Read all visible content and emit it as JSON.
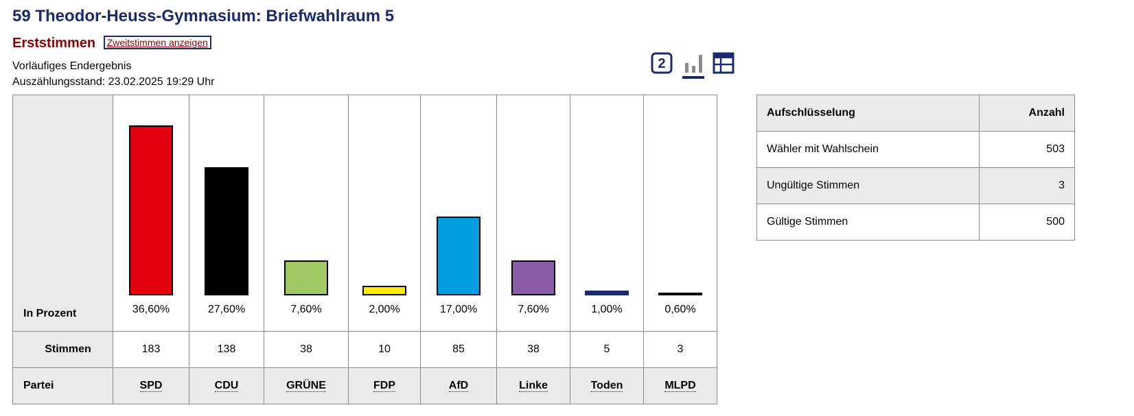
{
  "header": {
    "title": "59 Theodor-Heuss-Gymnasium: Briefwahlraum 5",
    "subtitle": "Erststimmen",
    "toggle_link": "Zweitstimmen anzeigen",
    "status": "Vorläufiges Endergebnis",
    "count_state": "Auszählungsstand: 23.02.2025 19:29 Uhr"
  },
  "view_icons": {
    "number_icon_text": "2",
    "icons": [
      "number-2-icon",
      "bar-chart-icon",
      "table-icon"
    ],
    "active": "bar-chart-icon",
    "color": "#1a2a6c"
  },
  "results_table": {
    "row_labels": {
      "percent": "In Prozent",
      "votes": "Stimmen",
      "party": "Partei"
    }
  },
  "chart_data": {
    "type": "bar",
    "categories": [
      "SPD",
      "CDU",
      "GRÜNE",
      "FDP",
      "AfD",
      "Linke",
      "Toden",
      "MLPD"
    ],
    "values": [
      36.6,
      27.6,
      7.6,
      2.0,
      17.0,
      7.6,
      1.0,
      0.6
    ],
    "value_labels": [
      "36,60%",
      "27,60%",
      "7,60%",
      "2,00%",
      "17,00%",
      "7,60%",
      "1,00%",
      "0,60%"
    ],
    "votes": [
      "183",
      "138",
      "38",
      "10",
      "85",
      "38",
      "5",
      "3"
    ],
    "colors": [
      "#e3000f",
      "#000000",
      "#a0c864",
      "#ffed00",
      "#009ee0",
      "#8a5ca8",
      "#1a2a6c",
      "#000000"
    ],
    "ylim": [
      0,
      36.6
    ],
    "grid": false,
    "title": "",
    "xlabel": "",
    "ylabel": ""
  },
  "breakdown_table": {
    "headers": [
      "Aufschlüsselung",
      "Anzahl"
    ],
    "rows": [
      {
        "label": "Wähler mit Wahlschein",
        "value": "503"
      },
      {
        "label": "Ungültige Stimmen",
        "value": "3"
      },
      {
        "label": "Gültige Stimmen",
        "value": "500"
      }
    ]
  }
}
